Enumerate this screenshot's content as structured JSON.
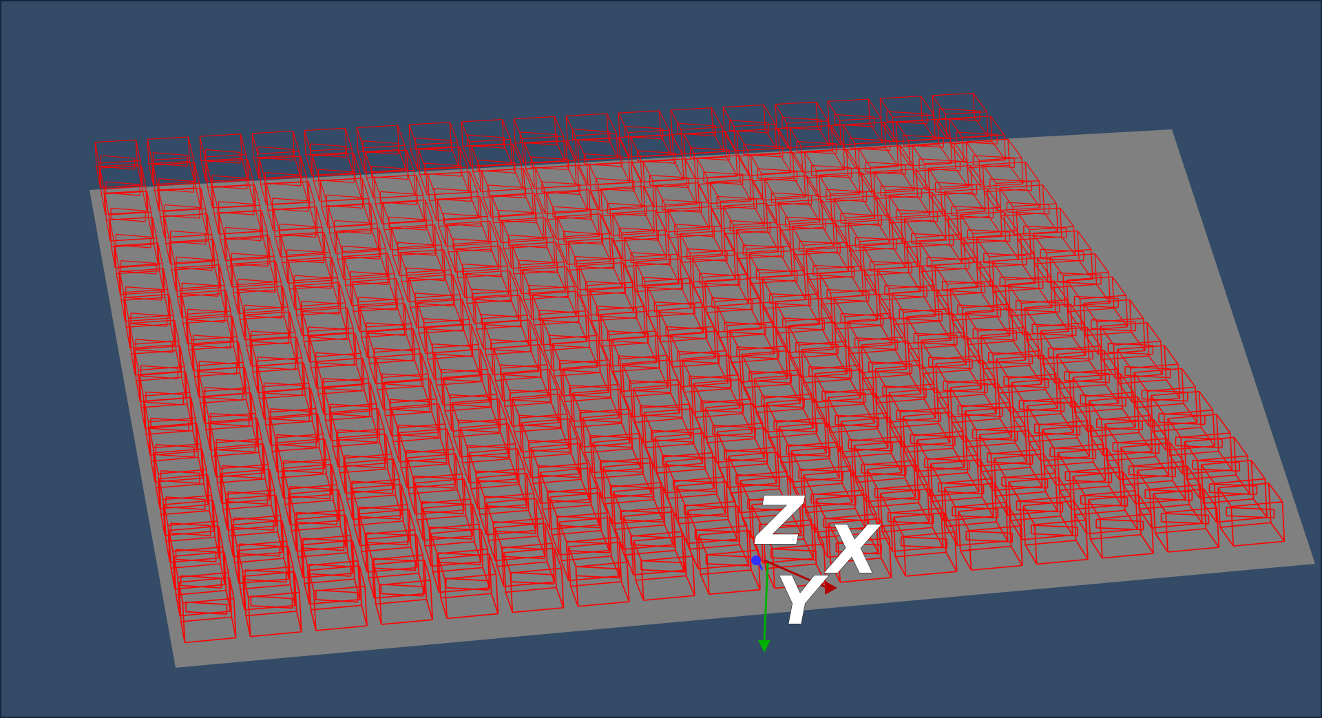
{
  "viewport": {
    "background_color": "#334b66",
    "border_color": "#15263f"
  },
  "ground_plane": {
    "color": "#808080"
  },
  "lattice": {
    "cell_color": "#ff0000",
    "cell_style": "wireframe-cube",
    "columns": 17,
    "rows": 18
  },
  "axes_widget": {
    "z_label": "Z",
    "x_label": "X",
    "y_label": "Y",
    "x_color": "#b30000",
    "y_color": "#00b000",
    "z_color": "#3030ff"
  }
}
